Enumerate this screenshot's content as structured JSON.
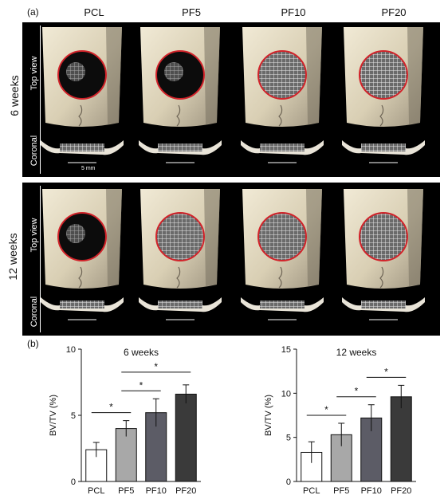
{
  "panel_a": {
    "letter": "(a)",
    "columns": [
      "PCL",
      "PF5",
      "PF10",
      "PF20"
    ],
    "rows": [
      {
        "label": "6 weeks",
        "top_label": "Top view",
        "bottom_label": "Coronal"
      },
      {
        "label": "12 weeks",
        "top_label": "Top view",
        "bottom_label": "Coronal"
      }
    ],
    "scale_bar_label": "5 mm"
  },
  "panel_b": {
    "letter": "(b)"
  },
  "chart_data": [
    {
      "type": "bar",
      "title": "6 weeks",
      "ylabel": "BV/TV (%)",
      "xlabel": "",
      "categories": [
        "PCL",
        "PF5",
        "PF10",
        "PF20"
      ],
      "values": [
        2.4,
        4.0,
        5.2,
        6.6
      ],
      "errors": [
        0.55,
        0.6,
        1.05,
        0.7
      ],
      "ylim": [
        0,
        10
      ],
      "yticks": [
        0,
        5,
        10
      ],
      "bar_colors": [
        "#ffffff",
        "#a8a8a8",
        "#5c5c66",
        "#3a3a3a"
      ],
      "significance": [
        {
          "from": 0,
          "to": 1,
          "label": "*"
        },
        {
          "from": 1,
          "to": 2,
          "label": "*"
        },
        {
          "from": 1,
          "to": 3,
          "label": "*"
        }
      ]
    },
    {
      "type": "bar",
      "title": "12 weeks",
      "ylabel": "BV/TV (%)",
      "xlabel": "",
      "categories": [
        "PCL",
        "PF5",
        "PF10",
        "PF20"
      ],
      "values": [
        3.3,
        5.3,
        7.2,
        9.6
      ],
      "errors": [
        1.2,
        1.3,
        1.5,
        1.3
      ],
      "ylim": [
        0,
        15
      ],
      "yticks": [
        0,
        5,
        10,
        15
      ],
      "bar_colors": [
        "#ffffff",
        "#a8a8a8",
        "#5c5c66",
        "#3a3a3a"
      ],
      "significance": [
        {
          "from": 0,
          "to": 1,
          "label": "*"
        },
        {
          "from": 1,
          "to": 2,
          "label": "*"
        },
        {
          "from": 2,
          "to": 3,
          "label": "*"
        }
      ]
    }
  ]
}
